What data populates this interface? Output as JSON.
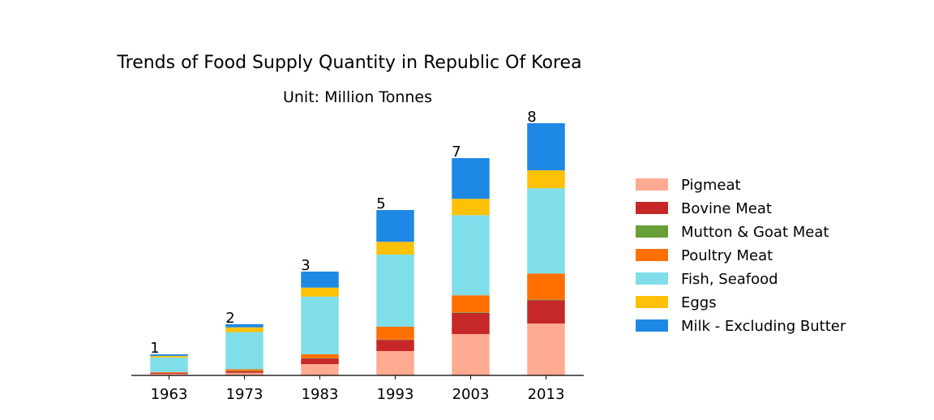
{
  "chart_data": {
    "type": "stacked-bar",
    "title": "Trends of Food Supply Quantity in Republic Of Korea",
    "subtitle": "Unit: Million Tonnes",
    "categories": [
      "1963",
      "1973",
      "1983",
      "1993",
      "2003",
      "2013"
    ],
    "series": [
      {
        "name": "Pigmeat",
        "color": "#ffab91",
        "values": [
          0.05,
          0.08,
          0.35,
          0.76,
          1.29,
          1.62
        ]
      },
      {
        "name": "Bovine Meat",
        "color": "#c62828",
        "values": [
          0.03,
          0.05,
          0.18,
          0.35,
          0.66,
          0.73
        ]
      },
      {
        "name": "Mutton & Goat Meat",
        "color": "#689f38",
        "values": [
          0.0,
          0.01,
          0.01,
          0.01,
          0.02,
          0.02
        ]
      },
      {
        "name": "Poultry Meat",
        "color": "#ff6f00",
        "values": [
          0.02,
          0.05,
          0.12,
          0.4,
          0.53,
          0.81
        ]
      },
      {
        "name": "Fish, Seafood",
        "color": "#80deea",
        "values": [
          0.46,
          1.16,
          1.8,
          2.25,
          2.5,
          2.66
        ]
      },
      {
        "name": "Eggs",
        "color": "#ffc107",
        "values": [
          0.05,
          0.15,
          0.28,
          0.4,
          0.51,
          0.56
        ]
      },
      {
        "name": "Milk - Excluding Butter",
        "color": "#1e88e5",
        "values": [
          0.05,
          0.1,
          0.5,
          0.99,
          1.27,
          1.47
        ]
      }
    ],
    "total_labels": [
      "1",
      "2",
      "3",
      "5",
      "7",
      "8"
    ],
    "ylim": [
      0,
      8.4
    ]
  }
}
